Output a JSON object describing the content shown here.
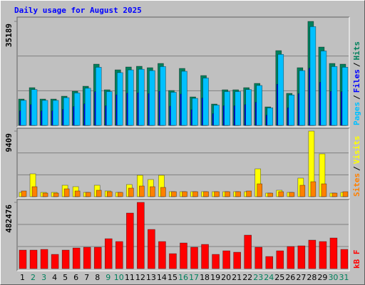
{
  "title": "Daily usage for August 2025",
  "legend_separator": "/",
  "chart_data": [
    {
      "type": "bar",
      "ylim": [
        0,
        35189
      ],
      "yticks": [
        35189
      ],
      "grid_divisions": 3,
      "series": [
        {
          "name": "Hits",
          "color": "#00805C",
          "values": [
            8917,
            12773,
            8917,
            8917,
            9881,
            11568,
            13255,
            20726,
            12050,
            18798,
            19762,
            20003,
            19521,
            20967,
            11809,
            19280,
            9640,
            16870,
            7230,
            12050,
            12050,
            12773,
            14219,
            6266,
            25305,
            10845,
            19521,
            35189,
            26510,
            20967,
            20726
          ]
        },
        {
          "name": "Files",
          "color": "#0000FF",
          "values": [
            4904,
            7025,
            4904,
            4904,
            5435,
            6362,
            7290,
            11399,
            6628,
            10339,
            10869,
            11002,
            10737,
            11532,
            6495,
            10604,
            5302,
            9279,
            3977,
            6628,
            6628,
            7025,
            7820,
            3446,
            13918,
            5965,
            10737,
            19354,
            14581,
            11532,
            11399
          ]
        },
        {
          "name": "Pages",
          "color": "#00C0FF",
          "values": [
            8471,
            12134,
            8471,
            8471,
            9387,
            10990,
            12592,
            19690,
            11448,
            17858,
            18774,
            19003,
            18545,
            19919,
            11219,
            18316,
            9158,
            16027,
            6869,
            11448,
            11448,
            12134,
            13508,
            5953,
            24040,
            10303,
            18545,
            33430,
            25185,
            19919,
            19690
          ]
        }
      ]
    },
    {
      "type": "bar",
      "ylim": [
        0,
        9409
      ],
      "yticks": [
        9409
      ],
      "grid_divisions": 3,
      "series": [
        {
          "name": "Visits",
          "color": "#FFFF00",
          "values": [
            614,
            3273,
            614,
            614,
            1636,
            1432,
            614,
            1636,
            818,
            614,
            1739,
            3068,
            2455,
            3068,
            716,
            716,
            716,
            716,
            716,
            716,
            716,
            716,
            3989,
            511,
            920,
            614,
            2659,
            9409,
            6137,
            511,
            614
          ]
        },
        {
          "name": "Sites",
          "color": "#FF8000",
          "values": [
            818,
            1432,
            511,
            511,
            1125,
            818,
            614,
            920,
            716,
            614,
            1227,
            1534,
            1432,
            1330,
            716,
            716,
            716,
            716,
            716,
            716,
            716,
            818,
            1841,
            511,
            716,
            614,
            1636,
            2148,
            1841,
            511,
            716
          ]
        }
      ]
    },
    {
      "type": "bar",
      "ylim": [
        0,
        482476
      ],
      "yticks": [
        482476
      ],
      "grid_divisions": 3,
      "x": [
        1,
        2,
        3,
        4,
        5,
        6,
        7,
        8,
        9,
        10,
        11,
        12,
        13,
        14,
        15,
        16,
        17,
        18,
        19,
        20,
        21,
        22,
        23,
        24,
        25,
        26,
        27,
        28,
        29,
        30,
        31
      ],
      "weekend_x": [
        2,
        3,
        9,
        10,
        16,
        17,
        23,
        24,
        30,
        31
      ],
      "weekend_color": "#00805C",
      "series": [
        {
          "name": "kB F",
          "color": "#FF0000",
          "values": [
            134888,
            134888,
            140076,
            103760,
            134888,
            150452,
            155640,
            155640,
            217896,
            197144,
            404664,
            482476,
            285340,
            197144,
            108948,
            186768,
            155640,
            176392,
            103760,
            129700,
            119324,
            243836,
            155640,
            88196,
            129700,
            160828,
            166016,
            207520,
            197144,
            223084,
            140076
          ]
        }
      ]
    }
  ]
}
